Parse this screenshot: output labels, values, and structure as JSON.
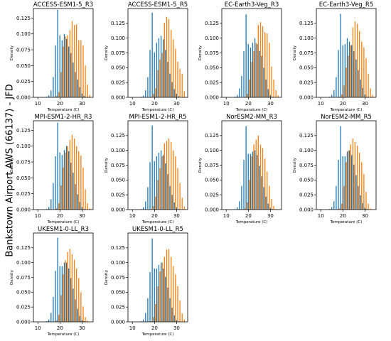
{
  "figure": {
    "ylabel": "Bankstown Airport AWS (66137) - JFD",
    "colors": {
      "series1": "#1f77b4",
      "series2": "#ff7f0e"
    }
  },
  "chart_data": [
    {
      "type": "bar",
      "title": "ACCESS-ESM1-5_R3",
      "xlabel": "Temperature (C)",
      "ylabel": "Density",
      "xlim": [
        8,
        35
      ],
      "ylim": [
        0,
        0.14
      ],
      "xticks": [
        10,
        20,
        30
      ],
      "yticks": [
        0.0,
        0.025,
        0.05,
        0.075,
        0.1,
        0.125
      ],
      "x": [
        14,
        15,
        16,
        17,
        18,
        19,
        20,
        21,
        22,
        23,
        24,
        25,
        26,
        27,
        28,
        29,
        30,
        31,
        32,
        33
      ],
      "series": [
        {
          "values": [
            0.001,
            0.003,
            0.011,
            0.032,
            0.082,
            0.138,
            0.098,
            0.09,
            0.1,
            0.092,
            0.08,
            0.07,
            0.055,
            0.04,
            0.028,
            0.016,
            0.006,
            0.002,
            0,
            0
          ]
        },
        {
          "values": [
            0,
            0,
            0,
            0,
            0.002,
            0.008,
            0.04,
            0.08,
            0.096,
            0.098,
            0.106,
            0.12,
            0.114,
            0.115,
            0.09,
            0.09,
            0.082,
            0.05,
            0.02,
            0.004
          ]
        }
      ]
    },
    {
      "type": "bar",
      "title": "ACCESS-ESM1-5_R5",
      "xlabel": "Temperature (C)",
      "ylabel": "Density",
      "xlim": [
        8,
        35
      ],
      "ylim": [
        0,
        0.15
      ],
      "xticks": [
        10,
        20,
        30
      ],
      "yticks": [
        0.0,
        0.025,
        0.05,
        0.075,
        0.1,
        0.125
      ],
      "x": [
        14,
        15,
        16,
        17,
        18,
        19,
        20,
        21,
        22,
        23,
        24,
        25,
        26,
        27,
        28,
        29,
        30,
        31,
        32,
        33
      ],
      "series": [
        {
          "values": [
            0.001,
            0.003,
            0.012,
            0.034,
            0.08,
            0.143,
            0.076,
            0.092,
            0.1,
            0.104,
            0.098,
            0.08,
            0.06,
            0.04,
            0.026,
            0.014,
            0.006,
            0.002,
            0,
            0
          ]
        },
        {
          "values": [
            0,
            0,
            0,
            0,
            0.001,
            0.006,
            0.015,
            0.046,
            0.064,
            0.075,
            0.126,
            0.136,
            0.132,
            0.114,
            0.098,
            0.082,
            0.06,
            0.048,
            0.04,
            0.01
          ]
        }
      ]
    },
    {
      "type": "bar",
      "title": "EC-Earth3-Veg_R3",
      "xlabel": "Temperature (C)",
      "ylabel": "Density",
      "xlim": [
        8,
        35
      ],
      "ylim": [
        0,
        0.15
      ],
      "xticks": [
        10,
        20,
        30
      ],
      "yticks": [
        0.0,
        0.025,
        0.05,
        0.075,
        0.1,
        0.125
      ],
      "x": [
        14,
        15,
        16,
        17,
        18,
        19,
        20,
        21,
        22,
        23,
        24,
        25,
        26,
        27,
        28,
        29,
        30,
        31,
        32,
        33
      ],
      "series": [
        {
          "values": [
            0.001,
            0.004,
            0.015,
            0.036,
            0.078,
            0.14,
            0.09,
            0.084,
            0.092,
            0.1,
            0.09,
            0.078,
            0.07,
            0.05,
            0.03,
            0.014,
            0.004,
            0.001,
            0,
            0
          ]
        },
        {
          "values": [
            0,
            0,
            0,
            0,
            0.001,
            0.006,
            0.03,
            0.06,
            0.078,
            0.092,
            0.122,
            0.127,
            0.12,
            0.11,
            0.108,
            0.092,
            0.052,
            0.03,
            0.012,
            0.003
          ]
        }
      ]
    },
    {
      "type": "bar",
      "title": "EC-Earth3-Veg_R5",
      "xlabel": "Temperature (C)",
      "ylabel": "Density",
      "xlim": [
        8,
        35
      ],
      "ylim": [
        0,
        0.15
      ],
      "xticks": [
        10,
        20,
        30
      ],
      "yticks": [
        0.0,
        0.025,
        0.05,
        0.075,
        0.1,
        0.125
      ],
      "x": [
        14,
        15,
        16,
        17,
        18,
        19,
        20,
        21,
        22,
        23,
        24,
        25,
        26,
        27,
        28,
        29,
        30,
        31,
        32,
        33
      ],
      "series": [
        {
          "values": [
            0.001,
            0.004,
            0.012,
            0.034,
            0.08,
            0.141,
            0.088,
            0.09,
            0.1,
            0.094,
            0.088,
            0.078,
            0.064,
            0.046,
            0.03,
            0.016,
            0.005,
            0.001,
            0,
            0
          ]
        },
        {
          "values": [
            0,
            0,
            0,
            0,
            0.001,
            0.005,
            0.02,
            0.05,
            0.07,
            0.088,
            0.118,
            0.128,
            0.124,
            0.112,
            0.094,
            0.084,
            0.066,
            0.04,
            0.015,
            0.004
          ]
        }
      ]
    },
    {
      "type": "bar",
      "title": "MPI-ESM1-2-HR_R3",
      "xlabel": "Temperature (C)",
      "ylabel": "Density",
      "xlim": [
        8,
        35
      ],
      "ylim": [
        0,
        0.14
      ],
      "xticks": [
        10,
        20,
        30
      ],
      "yticks": [
        0.0,
        0.025,
        0.05,
        0.075,
        0.1,
        0.125
      ],
      "x": [
        14,
        15,
        16,
        17,
        18,
        19,
        20,
        21,
        22,
        23,
        24,
        25,
        26,
        27,
        28,
        29,
        30,
        31,
        32,
        33
      ],
      "series": [
        {
          "values": [
            0.001,
            0.004,
            0.016,
            0.042,
            0.084,
            0.137,
            0.09,
            0.086,
            0.094,
            0.1,
            0.092,
            0.074,
            0.058,
            0.04,
            0.024,
            0.012,
            0.004,
            0.001,
            0,
            0
          ]
        },
        {
          "values": [
            0,
            0,
            0,
            0,
            0.002,
            0.01,
            0.038,
            0.066,
            0.09,
            0.1,
            0.11,
            0.118,
            0.112,
            0.1,
            0.092,
            0.085,
            0.066,
            0.032,
            0.01,
            0.002
          ]
        }
      ]
    },
    {
      "type": "bar",
      "title": "MPI-ESM1-2-HR_R5",
      "xlabel": "Temperature (C)",
      "ylabel": "Density",
      "xlim": [
        8,
        35
      ],
      "ylim": [
        0,
        0.15
      ],
      "xticks": [
        10,
        20,
        30
      ],
      "yticks": [
        0.0,
        0.025,
        0.05,
        0.075,
        0.1,
        0.125
      ],
      "x": [
        14,
        15,
        16,
        17,
        18,
        19,
        20,
        21,
        22,
        23,
        24,
        25,
        26,
        27,
        28,
        29,
        30,
        31,
        32,
        33
      ],
      "series": [
        {
          "values": [
            0.001,
            0.004,
            0.014,
            0.038,
            0.08,
            0.142,
            0.082,
            0.09,
            0.096,
            0.1,
            0.092,
            0.078,
            0.06,
            0.04,
            0.025,
            0.012,
            0.004,
            0.001,
            0,
            0
          ]
        },
        {
          "values": [
            0,
            0,
            0,
            0,
            0.001,
            0.006,
            0.022,
            0.05,
            0.07,
            0.09,
            0.112,
            0.116,
            0.12,
            0.114,
            0.1,
            0.09,
            0.07,
            0.045,
            0.02,
            0.005
          ]
        }
      ]
    },
    {
      "type": "bar",
      "title": "NorESM2-MM_R3",
      "xlabel": "Temperature (C)",
      "ylabel": "Density",
      "xlim": [
        8,
        35
      ],
      "ylim": [
        0,
        0.15
      ],
      "xticks": [
        10,
        20,
        30
      ],
      "yticks": [
        0.0,
        0.025,
        0.05,
        0.075,
        0.1,
        0.125
      ],
      "x": [
        14,
        15,
        16,
        17,
        18,
        19,
        20,
        21,
        22,
        23,
        24,
        25,
        26,
        27,
        28,
        29,
        30,
        31,
        32,
        33
      ],
      "series": [
        {
          "values": [
            0.001,
            0.004,
            0.014,
            0.04,
            0.084,
            0.141,
            0.094,
            0.094,
            0.098,
            0.1,
            0.092,
            0.074,
            0.056,
            0.038,
            0.022,
            0.01,
            0.003,
            0.001,
            0,
            0
          ]
        },
        {
          "values": [
            0,
            0,
            0,
            0,
            0.002,
            0.012,
            0.05,
            0.09,
            0.11,
            0.118,
            0.125,
            0.11,
            0.104,
            0.086,
            0.064,
            0.04,
            0.018,
            0.006,
            0.001,
            0
          ]
        }
      ]
    },
    {
      "type": "bar",
      "title": "NorESM2-MM_R5",
      "xlabel": "Temperature (C)",
      "ylabel": "Density",
      "xlim": [
        8,
        35
      ],
      "ylim": [
        0,
        0.15
      ],
      "xticks": [
        10,
        20,
        30
      ],
      "yticks": [
        0.0,
        0.025,
        0.05,
        0.075,
        0.1,
        0.125
      ],
      "x": [
        14,
        15,
        16,
        17,
        18,
        19,
        20,
        21,
        22,
        23,
        24,
        25,
        26,
        27,
        28,
        29,
        30,
        31,
        32,
        33
      ],
      "series": [
        {
          "values": [
            0.001,
            0.004,
            0.014,
            0.04,
            0.084,
            0.141,
            0.09,
            0.09,
            0.098,
            0.1,
            0.092,
            0.076,
            0.058,
            0.04,
            0.024,
            0.011,
            0.003,
            0.001,
            0,
            0
          ]
        },
        {
          "values": [
            0,
            0,
            0,
            0,
            0.002,
            0.01,
            0.04,
            0.08,
            0.1,
            0.11,
            0.12,
            0.114,
            0.108,
            0.096,
            0.08,
            0.06,
            0.03,
            0.01,
            0.002,
            0
          ]
        }
      ]
    },
    {
      "type": "bar",
      "title": "UKESM1-0-LL_R3",
      "xlabel": "Temperature (C)",
      "ylabel": "Density",
      "xlim": [
        8,
        35
      ],
      "ylim": [
        0,
        0.15
      ],
      "xticks": [
        10,
        20,
        30
      ],
      "yticks": [
        0.0,
        0.025,
        0.05,
        0.075,
        0.1,
        0.125
      ],
      "x": [
        14,
        15,
        16,
        17,
        18,
        19,
        20,
        21,
        22,
        23,
        24,
        25,
        26,
        27,
        28,
        29,
        30,
        31,
        32,
        33
      ],
      "series": [
        {
          "values": [
            0.001,
            0.004,
            0.015,
            0.042,
            0.086,
            0.142,
            0.094,
            0.094,
            0.1,
            0.1,
            0.09,
            0.074,
            0.056,
            0.038,
            0.022,
            0.01,
            0.003,
            0.001,
            0,
            0
          ]
        },
        {
          "values": [
            0,
            0,
            0,
            0,
            0.002,
            0.012,
            0.045,
            0.08,
            0.104,
            0.118,
            0.123,
            0.114,
            0.105,
            0.09,
            0.074,
            0.05,
            0.026,
            0.008,
            0.002,
            0
          ]
        }
      ]
    },
    {
      "type": "bar",
      "title": "UKESM1-0-LL_R5",
      "xlabel": "Temperature (C)",
      "ylabel": "Density",
      "xlim": [
        8,
        35
      ],
      "ylim": [
        0,
        0.15
      ],
      "xticks": [
        10,
        20,
        30
      ],
      "yticks": [
        0.0,
        0.025,
        0.05,
        0.075,
        0.1,
        0.125
      ],
      "x": [
        14,
        15,
        16,
        17,
        18,
        19,
        20,
        21,
        22,
        23,
        24,
        25,
        26,
        27,
        28,
        29,
        30,
        31,
        32,
        33
      ],
      "series": [
        {
          "values": [
            0.001,
            0.004,
            0.015,
            0.04,
            0.084,
            0.141,
            0.09,
            0.09,
            0.096,
            0.1,
            0.09,
            0.076,
            0.058,
            0.04,
            0.024,
            0.011,
            0.003,
            0.001,
            0,
            0
          ]
        },
        {
          "values": [
            0,
            0,
            0,
            0,
            0.001,
            0.008,
            0.03,
            0.06,
            0.085,
            0.1,
            0.11,
            0.122,
            0.123,
            0.11,
            0.094,
            0.08,
            0.06,
            0.036,
            0.014,
            0.004
          ]
        }
      ]
    }
  ]
}
